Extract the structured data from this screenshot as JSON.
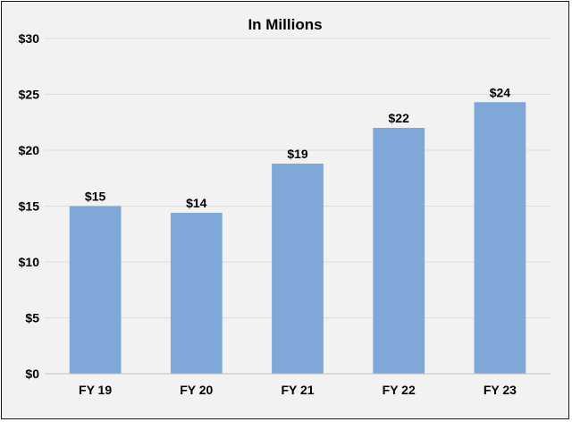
{
  "chart_data": {
    "type": "bar",
    "title": "In Millions",
    "xlabel": "",
    "ylabel": "",
    "categories": [
      "FY 19",
      "FY 20",
      "FY 21",
      "FY 22",
      "FY 23"
    ],
    "values": [
      15,
      14.4,
      18.8,
      22,
      24.3
    ],
    "data_labels": [
      "$15",
      "$14",
      "$19",
      "$22",
      "$24"
    ],
    "ylim": [
      0,
      30
    ],
    "y_ticks": [
      0,
      5,
      10,
      15,
      20,
      25,
      30
    ],
    "y_tick_labels": [
      "$0",
      "$5",
      "$10",
      "$15",
      "$20",
      "$25",
      "$30"
    ],
    "grid": true,
    "legend": "none",
    "colors": {
      "bar": "#7fa7d8",
      "grid": "#dcdcdc",
      "background": "#f2f2f2",
      "axis": "#bfbfbf"
    }
  }
}
